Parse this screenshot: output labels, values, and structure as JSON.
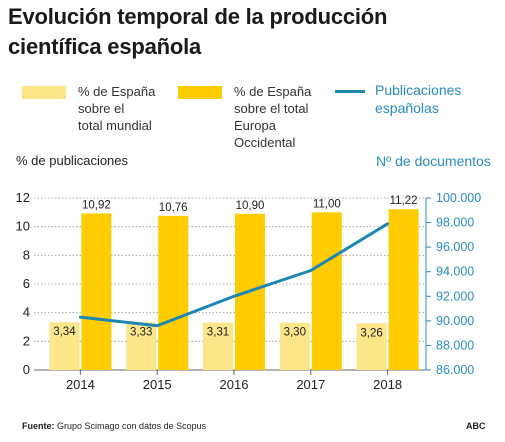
{
  "title": [
    "Evolución temporal de la producción",
    "científica española"
  ],
  "legend": {
    "world": [
      "% de España",
      "sobre el",
      "total mundial"
    ],
    "europe": [
      "% de España",
      "sobre el total",
      "Europa",
      "Occidental"
    ],
    "line": [
      "Publicaciones",
      "españolas"
    ]
  },
  "axis_titles": {
    "left": "% de publicaciones",
    "right": "Nº de documentos"
  },
  "footer": {
    "source_label": "Fuente:",
    "source_text": "Grupo Scimago con datos de Scopus",
    "brand": "ABC"
  },
  "colors": {
    "world": "#fde68a",
    "europe": "#ffcc00",
    "line": "#1c86b4",
    "right_axis_text": "#2a8cc0"
  },
  "chart_data": {
    "type": "bar",
    "categories": [
      "2014",
      "2015",
      "2016",
      "2017",
      "2018"
    ],
    "series": [
      {
        "name": "% de España sobre el total mundial",
        "values": [
          3.34,
          3.33,
          3.31,
          3.3,
          3.26
        ],
        "labels": [
          "3,34",
          "3,33",
          "3,31",
          "3,30",
          "3,26"
        ]
      },
      {
        "name": "% de España sobre el total Europa Occidental",
        "values": [
          10.92,
          10.76,
          10.9,
          11.0,
          11.22
        ],
        "labels": [
          "10,92",
          "10,76",
          "10,90",
          "11,00",
          "11,22"
        ]
      }
    ],
    "line_series": {
      "name": "Publicaciones españolas",
      "values": [
        90300,
        89600,
        92000,
        94100,
        97900
      ]
    },
    "y_left": {
      "ylim": [
        0,
        12
      ],
      "ticks": [
        "0",
        "2",
        "4",
        "6",
        "8",
        "10",
        "12"
      ]
    },
    "y_right": {
      "ylim": [
        86000,
        100000
      ],
      "ticks": [
        "86.000",
        "88.000",
        "90.000",
        "92.000",
        "94.000",
        "96.000",
        "98.000",
        "100.000"
      ]
    },
    "grid": true
  }
}
